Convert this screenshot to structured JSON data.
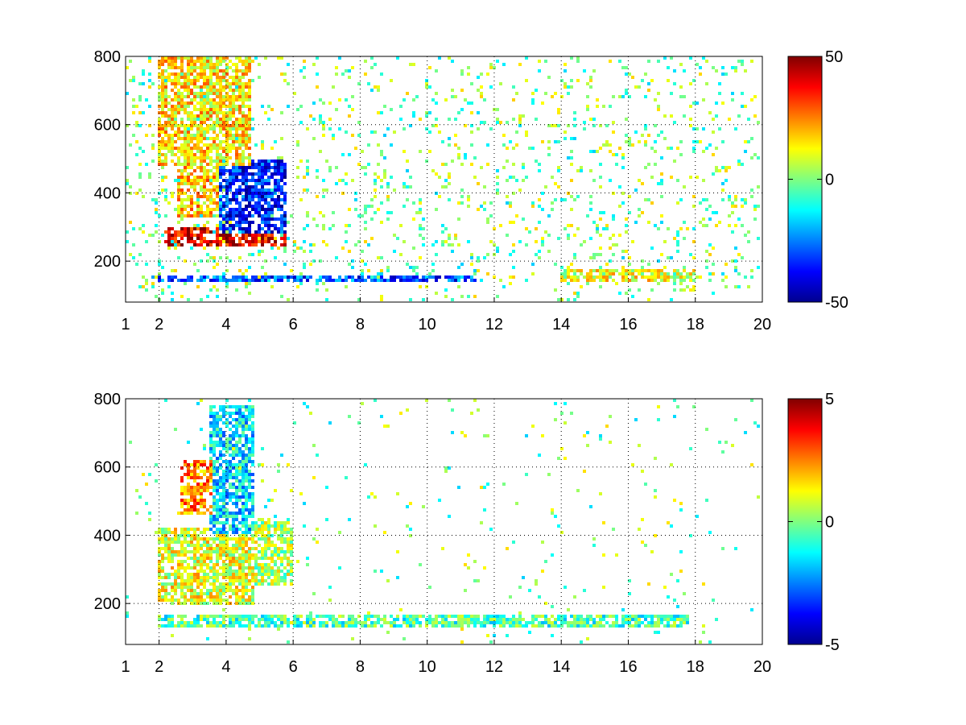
{
  "chart_data": [
    {
      "type": "heatmap",
      "title": "",
      "xlabel": "",
      "ylabel": "",
      "xlim": [
        1,
        20
      ],
      "ylim": [
        80,
        800
      ],
      "x_scale": "linear",
      "x_ticks": [
        1,
        2,
        4,
        6,
        8,
        10,
        12,
        14,
        16,
        18,
        20
      ],
      "x_tick_labels": [
        "1",
        "2",
        "4",
        "6",
        "8",
        "10",
        "12",
        "14",
        "16",
        "18",
        "20"
      ],
      "y_ticks": [
        200,
        400,
        600,
        800
      ],
      "y_tick_labels": [
        "200",
        "400",
        "600",
        "800"
      ],
      "grid": "dotted",
      "colormap": "jet",
      "clim": [
        -50,
        50
      ],
      "colorbar_ticks": [
        -50,
        0,
        50
      ],
      "colorbar_tick_labels": [
        "-50",
        "0",
        "50"
      ],
      "colorbar_position": "right",
      "features": [
        {
          "x": [
            2.2,
            5.8
          ],
          "y": [
            240,
            300
          ],
          "value": 40
        },
        {
          "x": [
            2.5,
            4.7
          ],
          "y": [
            330,
            480
          ],
          "value": 18
        },
        {
          "x": [
            3.8,
            5.8
          ],
          "y": [
            280,
            500
          ],
          "value": -35
        },
        {
          "x": [
            2.0,
            4.7
          ],
          "y": [
            480,
            800
          ],
          "value": 15
        },
        {
          "x": [
            1.8,
            11.5
          ],
          "y": [
            135,
            160
          ],
          "value": -30
        },
        {
          "x": [
            14.0,
            18.0
          ],
          "y": [
            135,
            175
          ],
          "value": 10
        }
      ]
    },
    {
      "type": "heatmap",
      "title": "",
      "xlabel": "",
      "ylabel": "",
      "xlim": [
        1,
        20
      ],
      "ylim": [
        80,
        800
      ],
      "x_scale": "linear",
      "x_ticks": [
        1,
        2,
        4,
        6,
        8,
        10,
        12,
        14,
        16,
        18,
        20
      ],
      "x_tick_labels": [
        "1",
        "2",
        "4",
        "6",
        "8",
        "10",
        "12",
        "14",
        "16",
        "18",
        "20"
      ],
      "y_ticks": [
        200,
        400,
        600,
        800
      ],
      "y_tick_labels": [
        "200",
        "400",
        "600",
        "800"
      ],
      "grid": "dotted",
      "colormap": "jet",
      "clim": [
        -5,
        5
      ],
      "colorbar_ticks": [
        -5,
        0,
        5
      ],
      "colorbar_tick_labels": [
        "-5",
        "0",
        "5"
      ],
      "colorbar_position": "right",
      "features": [
        {
          "x": [
            2.0,
            4.8
          ],
          "y": [
            200,
            420
          ],
          "value": 1.0
        },
        {
          "x": [
            3.5,
            4.8
          ],
          "y": [
            400,
            780
          ],
          "value": -1.5
        },
        {
          "x": [
            2.6,
            3.6
          ],
          "y": [
            460,
            620
          ],
          "value": 2.5
        },
        {
          "x": [
            4.8,
            6.0
          ],
          "y": [
            250,
            450
          ],
          "value": 0.5
        },
        {
          "x": [
            2.0,
            17.8
          ],
          "y": [
            130,
            170
          ],
          "value": -0.5
        }
      ]
    }
  ]
}
